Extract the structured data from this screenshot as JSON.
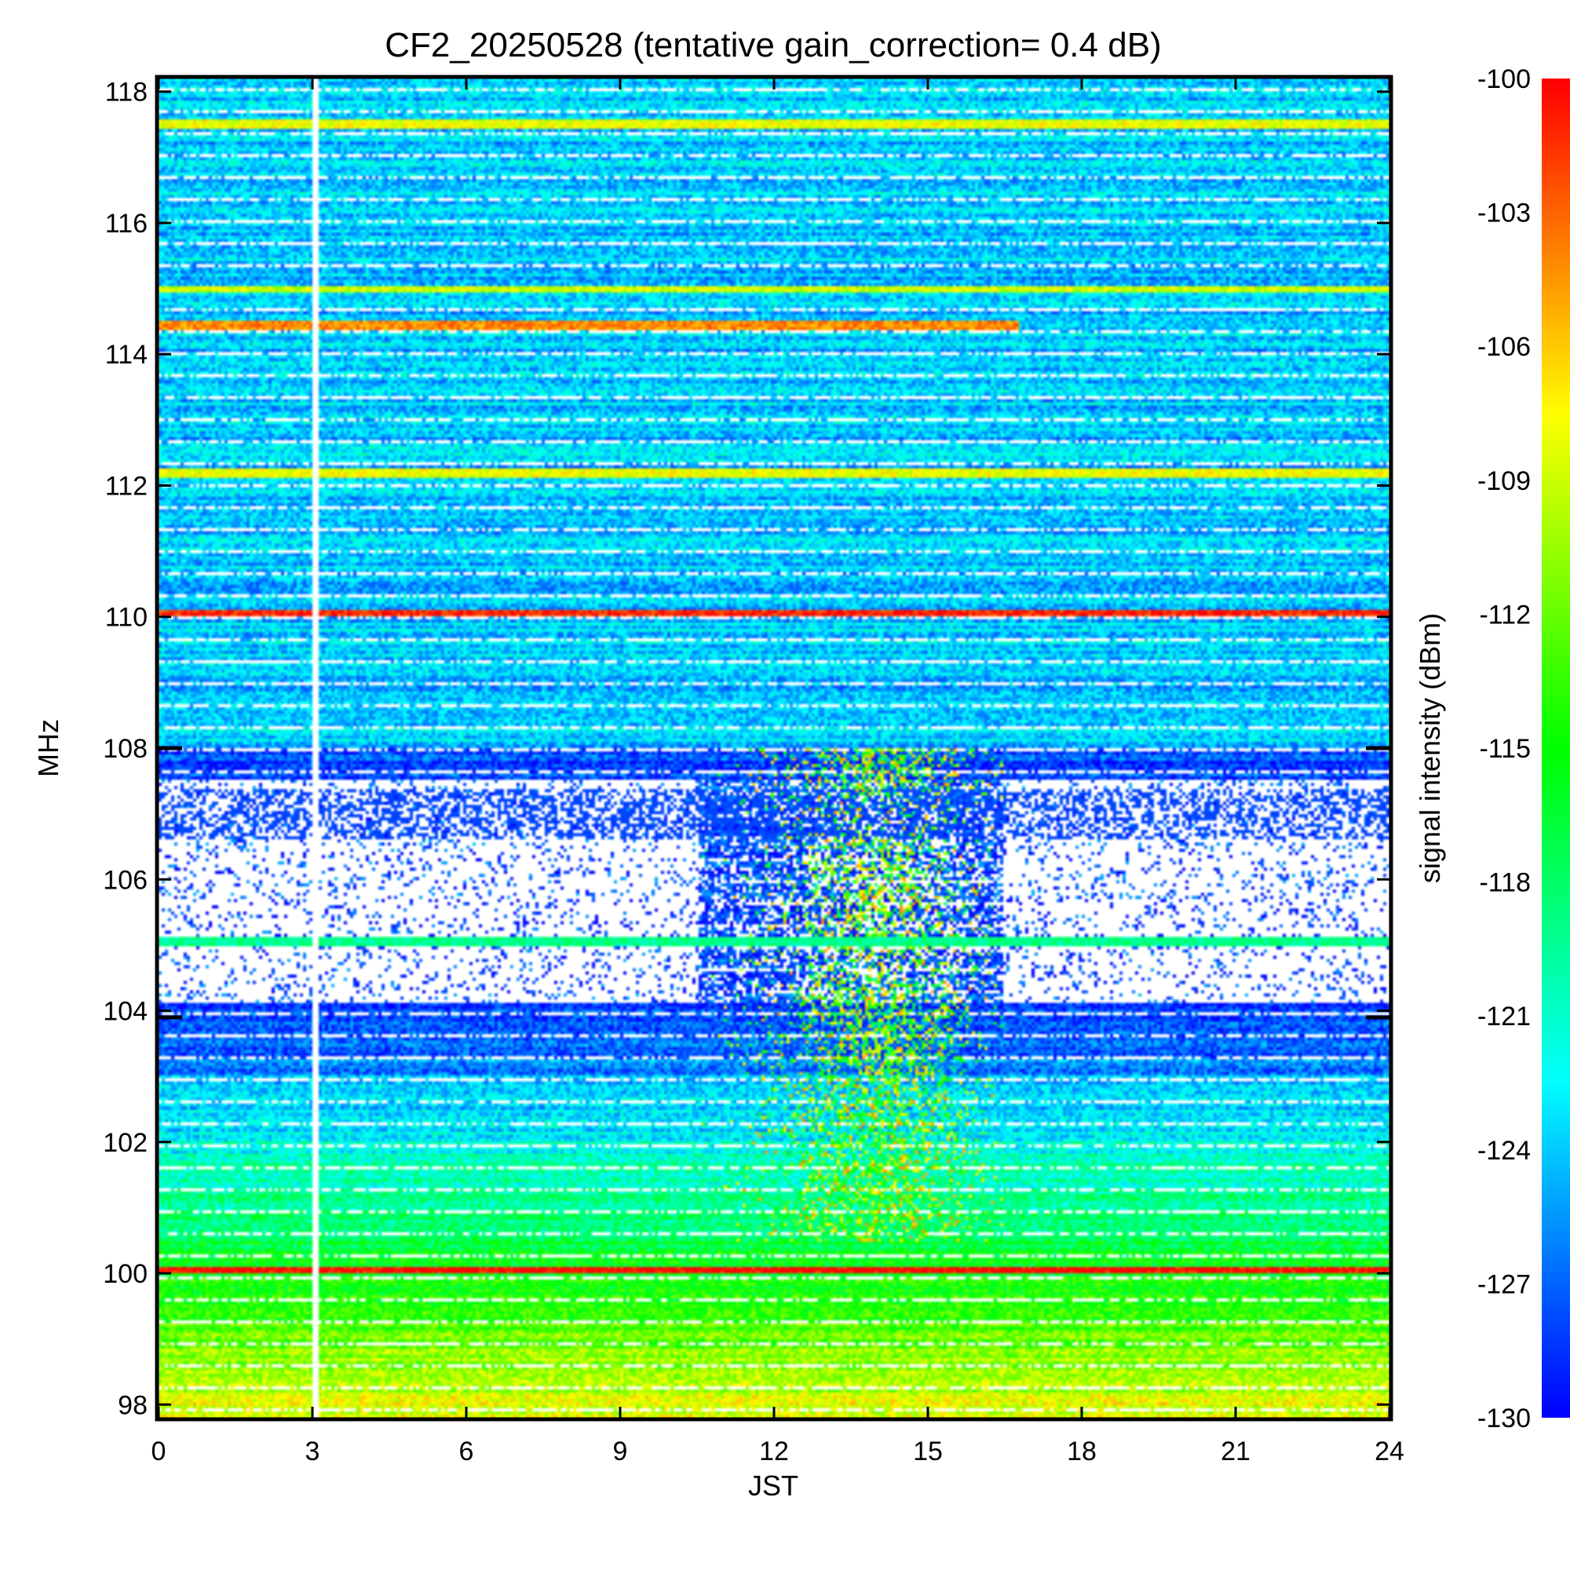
{
  "chart_data": {
    "type": "heatmap",
    "title": "CF2_20250528 (tentative gain_correction=  0.4 dB)",
    "xlabel": "JST",
    "ylabel": "MHz",
    "colorbar_label": "signal intensity (dBm)",
    "xlim": [
      0,
      24
    ],
    "ylim": [
      97.8,
      118.2
    ],
    "x_ticks": [
      0,
      3,
      6,
      9,
      12,
      15,
      18,
      21,
      24
    ],
    "y_ticks": [
      98,
      100,
      102,
      104,
      106,
      108,
      110,
      112,
      114,
      116,
      118
    ],
    "colorbar_range": [
      -130,
      -100
    ],
    "colorbar_ticks": [
      -100,
      -103,
      -106,
      -109,
      -112,
      -115,
      -118,
      -121,
      -124,
      -127,
      -130
    ],
    "colorscale": [
      "#0000ff",
      "#00ffff",
      "#00ff00",
      "#ffff00",
      "#ff0000"
    ],
    "data_gap_jst": 3.05,
    "strong_carriers_mhz": [
      {
        "freq": 117.5,
        "level": -108
      },
      {
        "freq": 115.0,
        "level": -109
      },
      {
        "freq": 114.45,
        "level": -104,
        "end_jst": 16.8
      },
      {
        "freq": 112.2,
        "level": -108
      },
      {
        "freq": 110.05,
        "level": -101
      },
      {
        "freq": 105.05,
        "level": -119
      },
      {
        "freq": 100.05,
        "level": -100
      }
    ],
    "blank_band_mhz": [
      [
        104.1,
        107.5
      ]
    ],
    "daytime_enhancement": {
      "jst_range": [
        10.5,
        16.5
      ],
      "freq_range_mhz": [
        100.5,
        108.0
      ]
    }
  }
}
